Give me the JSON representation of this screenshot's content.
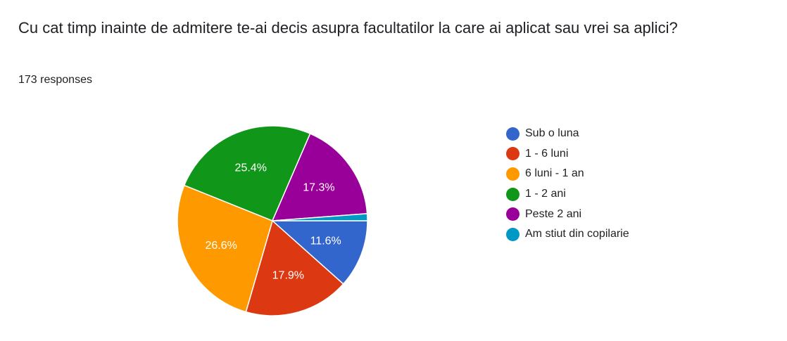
{
  "question": {
    "title": "Cu cat timp inainte de admitere te-ai decis asupra facultatilor la care ai aplicat sau vrei sa aplici?",
    "responses_label": "173 responses"
  },
  "chart_data": {
    "type": "pie",
    "categories": [
      "Sub o luna",
      "1 - 6 luni",
      "6 luni - 1 an",
      "1 - 2 ani",
      "Peste 2 ani",
      "Am stiut din copilarie"
    ],
    "values": [
      11.6,
      17.9,
      26.6,
      25.4,
      17.3,
      1.2
    ],
    "data_labels": [
      "11.6%",
      "17.9%",
      "26.6%",
      "25.4%",
      "17.3%",
      ""
    ],
    "colors": [
      "#3366cc",
      "#dc3912",
      "#ff9900",
      "#109618",
      "#990099",
      "#0099c6"
    ],
    "legend_position": "right"
  }
}
